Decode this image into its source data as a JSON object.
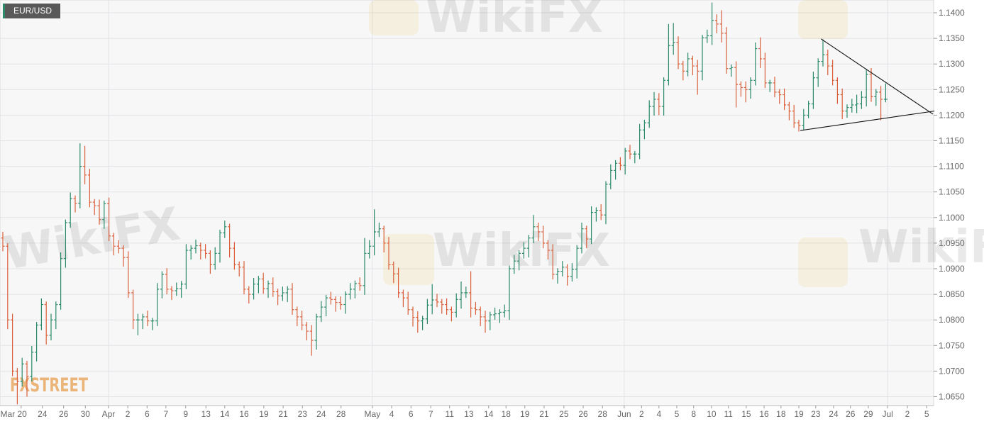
{
  "chart_data": {
    "type": "ohlc",
    "title": "EUR/USD",
    "xlabel": "",
    "ylabel": "",
    "ylim": [
      1.0625,
      1.1425
    ],
    "grid": true,
    "y_ticks": [
      "1.0650",
      "1.0700",
      "1.0750",
      "1.0800",
      "1.0850",
      "1.0900",
      "1.0950",
      "1.1000",
      "1.1050",
      "1.1100",
      "1.1150",
      "1.1200",
      "1.1250",
      "1.1300",
      "1.1350",
      "1.1400"
    ],
    "x_ticks": [
      {
        "label": "Mar 20",
        "at": 3.8
      },
      {
        "label": "24",
        "at": 8.2
      },
      {
        "label": "26",
        "at": 12.6
      },
      {
        "label": "30",
        "at": 17.1
      },
      {
        "label": "Apr",
        "at": 21.9,
        "month": true
      },
      {
        "label": "2",
        "at": 25.9
      },
      {
        "label": "6",
        "at": 29.9
      },
      {
        "label": "7",
        "at": 33.8
      },
      {
        "label": "9",
        "at": 37.9
      },
      {
        "label": "13",
        "at": 42.1
      },
      {
        "label": "14",
        "at": 46
      },
      {
        "label": "16",
        "at": 50
      },
      {
        "label": "19",
        "at": 54.1
      },
      {
        "label": "21",
        "at": 58.1
      },
      {
        "label": "23",
        "at": 62.1
      },
      {
        "label": "24",
        "at": 66
      },
      {
        "label": "28",
        "at": 70.1
      },
      {
        "label": "May",
        "at": 76.6,
        "month": true
      },
      {
        "label": "4",
        "at": 80.6
      },
      {
        "label": "6",
        "at": 84.6
      },
      {
        "label": "7",
        "at": 88.7
      },
      {
        "label": "11",
        "at": 92.6
      },
      {
        "label": "13",
        "at": 96.6
      },
      {
        "label": "14",
        "at": 100.7
      },
      {
        "label": "18",
        "at": 104.3
      },
      {
        "label": "19",
        "at": 108.2
      },
      {
        "label": "21",
        "at": 112.2
      },
      {
        "label": "25",
        "at": 116.3
      },
      {
        "label": "26",
        "at": 120.3
      },
      {
        "label": "28",
        "at": 124.3
      },
      {
        "label": "Jun",
        "at": 128.8,
        "month": true
      },
      {
        "label": "2",
        "at": 132.4
      },
      {
        "label": "4",
        "at": 136
      },
      {
        "label": "5",
        "at": 139.7
      },
      {
        "label": "8",
        "at": 143.2
      },
      {
        "label": "10",
        "at": 146.9
      },
      {
        "label": "11",
        "at": 150.4
      },
      {
        "label": "15",
        "at": 154.1
      },
      {
        "label": "16",
        "at": 157.8
      },
      {
        "label": "18",
        "at": 161.3
      },
      {
        "label": "19",
        "at": 165
      },
      {
        "label": "23",
        "at": 168.5
      },
      {
        "label": "24",
        "at": 172.2
      },
      {
        "label": "26",
        "at": 175.7
      },
      {
        "label": "29",
        "at": 179.4
      },
      {
        "label": "Jul",
        "at": 183.4,
        "month": true
      },
      {
        "label": "2",
        "at": 187.5
      },
      {
        "label": "5",
        "at": 191.5
      }
    ],
    "first_open": 1.096,
    "close": [
      1.0944,
      1.08,
      1.07,
      1.068,
      1.0714,
      1.069,
      1.0737,
      1.079,
      1.083,
      1.077,
      1.08,
      1.083,
      1.092,
      1.099,
      1.1037,
      1.1028,
      1.11,
      1.1083,
      1.103,
      1.1023,
      1.0996,
      1.1027,
      1.0964,
      1.0944,
      1.094,
      1.0922,
      1.0853,
      1.08,
      1.08,
      1.0806,
      1.0798,
      1.0798,
      1.086,
      1.0889,
      1.086,
      1.0857,
      1.0861,
      1.087,
      1.0936,
      1.094,
      1.0945,
      1.0936,
      1.093,
      1.0908,
      1.093,
      1.097,
      1.0982,
      1.094,
      1.0908,
      1.0903,
      1.086,
      1.085,
      1.087,
      1.088,
      1.0861,
      1.0871,
      1.0855,
      1.0847,
      1.0853,
      1.086,
      1.082,
      1.0806,
      1.079,
      1.0778,
      1.076,
      1.0806,
      1.0825,
      1.0843,
      1.084,
      1.0834,
      1.083,
      1.085,
      1.086,
      1.0871,
      1.0867,
      1.093,
      1.0944,
      1.0972,
      1.0978,
      1.095,
      1.0908,
      1.089,
      1.0853,
      1.0843,
      1.082,
      1.0805,
      1.0798,
      1.0802,
      1.0829,
      1.0839,
      1.0835,
      1.083,
      1.082,
      1.0815,
      1.084,
      1.0853,
      1.0853,
      1.0823,
      1.082,
      1.0806,
      1.0798,
      1.081,
      1.0812,
      1.0815,
      1.0818,
      1.09,
      1.0915,
      1.093,
      1.094,
      1.096,
      1.0982,
      1.0972,
      1.095,
      1.0936,
      1.0889,
      1.0895,
      1.0903,
      1.0885,
      1.0899,
      1.094,
      1.0978,
      1.0958,
      1.101,
      1.1014,
      1.1005,
      1.1065,
      1.1092,
      1.1106,
      1.1102,
      1.113,
      1.1124,
      1.1124,
      1.1171,
      1.1185,
      1.1217,
      1.1231,
      1.1217,
      1.1268,
      1.1336,
      1.1342,
      1.13,
      1.1286,
      1.131,
      1.1296,
      1.1286,
      1.1351,
      1.1355,
      1.1385,
      1.1378,
      1.136,
      1.1291,
      1.1293,
      1.126,
      1.1254,
      1.125,
      1.1268,
      1.133,
      1.131,
      1.1263,
      1.1263,
      1.1245,
      1.124,
      1.122,
      1.1208,
      1.1185,
      1.118,
      1.12,
      1.1222,
      1.1273,
      1.1305,
      1.1318,
      1.1296,
      1.1268,
      1.124,
      1.1208,
      1.1215,
      1.122,
      1.1222,
      1.1235,
      1.128,
      1.1236,
      1.1245,
      1.1231,
      1.1231
    ],
    "high": [
      1.0972,
      1.095,
      1.0812,
      1.0706,
      1.0726,
      1.072,
      1.0749,
      1.0796,
      1.0842,
      1.0836,
      1.0812,
      1.0836,
      1.0932,
      1.0996,
      1.1049,
      1.1043,
      1.1145,
      1.114,
      1.1095,
      1.1036,
      1.1035,
      1.1033,
      1.1039,
      1.097,
      1.0956,
      1.0946,
      1.0934,
      1.0859,
      1.0812,
      1.0812,
      1.0818,
      1.0804,
      1.0872,
      1.0895,
      1.0901,
      1.0866,
      1.0873,
      1.0876,
      1.0948,
      1.0946,
      1.0957,
      1.0951,
      1.0948,
      1.0936,
      1.0942,
      1.0976,
      1.0994,
      1.0988,
      1.0952,
      1.0914,
      1.0915,
      1.0866,
      1.0882,
      1.0886,
      1.0892,
      1.0877,
      1.0883,
      1.0861,
      1.0865,
      1.0866,
      1.0872,
      1.0826,
      1.0818,
      1.0796,
      1.079,
      1.0812,
      1.0837,
      1.0849,
      1.0855,
      1.0846,
      1.0846,
      1.0856,
      1.0872,
      1.0877,
      1.0883,
      1.096,
      1.0956,
      1.1016,
      1.099,
      1.0984,
      1.0962,
      1.0914,
      1.0902,
      1.0859,
      1.0855,
      1.0826,
      1.0817,
      1.0808,
      1.0841,
      1.087,
      1.0851,
      1.0841,
      1.0842,
      1.0826,
      1.0852,
      1.0875,
      1.0865,
      1.0895,
      1.0835,
      1.0826,
      1.0818,
      1.0816,
      1.0824,
      1.0821,
      1.083,
      1.0906,
      1.0927,
      1.0936,
      1.0952,
      1.0966,
      1.1005,
      1.099,
      1.0984,
      1.0956,
      1.0948,
      1.0901,
      1.0915,
      1.0909,
      1.0911,
      1.0946,
      1.099,
      1.0984,
      1.1022,
      1.102,
      1.1026,
      1.1071,
      1.1104,
      1.1112,
      1.1118,
      1.1136,
      1.1142,
      1.113,
      1.1183,
      1.1191,
      1.1229,
      1.1245,
      1.1243,
      1.1274,
      1.1378,
      1.138,
      1.1354,
      1.1306,
      1.1322,
      1.1316,
      1.1308,
      1.1357,
      1.1367,
      1.142,
      1.1397,
      1.1405,
      1.1372,
      1.1299,
      1.1305,
      1.1266,
      1.1266,
      1.1274,
      1.1342,
      1.1352,
      1.1322,
      1.1269,
      1.1275,
      1.1251,
      1.1252,
      1.1226,
      1.122,
      1.1191,
      1.1212,
      1.1228,
      1.1285,
      1.1311,
      1.1348,
      1.1328,
      1.1308,
      1.1274,
      1.1252,
      1.1221,
      1.1232,
      1.124,
      1.1247,
      1.129,
      1.1292,
      1.1251,
      1.1257,
      1.1262
    ],
    "low": [
      1.0934,
      1.0782,
      1.069,
      1.0635,
      1.067,
      1.065,
      1.068,
      1.0719,
      1.078,
      1.0752,
      1.076,
      1.0782,
      1.082,
      1.0902,
      1.098,
      1.101,
      1.1018,
      1.1065,
      1.102,
      1.1005,
      1.0986,
      1.0978,
      1.0954,
      1.0926,
      1.093,
      1.0904,
      1.0843,
      1.0782,
      1.077,
      1.0782,
      1.0788,
      1.078,
      1.0788,
      1.0842,
      1.085,
      1.0839,
      1.0847,
      1.0843,
      1.086,
      1.0918,
      1.093,
      1.0918,
      1.092,
      1.089,
      1.0898,
      1.0912,
      1.096,
      1.0922,
      1.0898,
      1.0885,
      1.085,
      1.0832,
      1.084,
      1.0852,
      1.0851,
      1.0843,
      1.0845,
      1.0829,
      1.0837,
      1.0835,
      1.081,
      1.0788,
      1.078,
      1.076,
      1.073,
      1.0742,
      1.0796,
      1.0807,
      1.083,
      1.0816,
      1.082,
      1.0812,
      1.084,
      1.0842,
      1.0857,
      1.0849,
      1.092,
      1.0926,
      1.0962,
      1.0932,
      1.0898,
      1.0872,
      1.0843,
      1.0825,
      1.081,
      1.0787,
      1.0775,
      1.078,
      1.0792,
      1.0811,
      1.0825,
      1.0812,
      1.081,
      1.0797,
      1.0805,
      1.0822,
      1.0843,
      1.0805,
      1.081,
      1.0788,
      1.0775,
      1.078,
      1.08,
      1.0794,
      1.0805,
      1.08,
      1.089,
      1.0897,
      1.092,
      1.0922,
      1.095,
      1.0954,
      1.094,
      1.0918,
      1.0879,
      1.0871,
      1.0885,
      1.0867,
      1.0875,
      1.0881,
      1.093,
      1.094,
      1.0948,
      1.0992,
      1.0995,
      1.0987,
      1.1055,
      1.1074,
      1.1092,
      1.1084,
      1.1114,
      1.1106,
      1.1114,
      1.1153,
      1.1175,
      1.1199,
      1.12,
      1.1199,
      1.1258,
      1.1318,
      1.129,
      1.1268,
      1.1276,
      1.1278,
      1.124,
      1.1268,
      1.1341,
      1.1337,
      1.136,
      1.1342,
      1.1281,
      1.1275,
      1.1215,
      1.1236,
      1.1225,
      1.1232,
      1.1258,
      1.1292,
      1.1253,
      1.1245,
      1.1235,
      1.1222,
      1.121,
      1.119,
      1.1175,
      1.1168,
      1.117,
      1.1194,
      1.1212,
      1.1255,
      1.1295,
      1.1278,
      1.1258,
      1.1222,
      1.1192,
      1.1195,
      1.1205,
      1.1204,
      1.1212,
      1.1217,
      1.1226,
      1.1218,
      1.119,
      1.1225
    ],
    "trendlines": [
      {
        "name": "upper",
        "from": {
          "bar": 169.6,
          "price": 1.1349
        },
        "to": {
          "bar": 192.8,
          "price": 1.1202
        }
      },
      {
        "name": "lower",
        "from": {
          "bar": 165.3,
          "price": 1.117
        },
        "to": {
          "bar": 193.1,
          "price": 1.1208
        }
      }
    ],
    "colors": {
      "up": "#2a8a6a",
      "down": "#d9603b",
      "grid": "#e3e3e6",
      "background": "#f7f7f8",
      "trendline": "#111111",
      "title_bg": "#595959"
    }
  },
  "watermarks": {
    "brand": "WikiFX",
    "logo": "FXSTREET"
  }
}
